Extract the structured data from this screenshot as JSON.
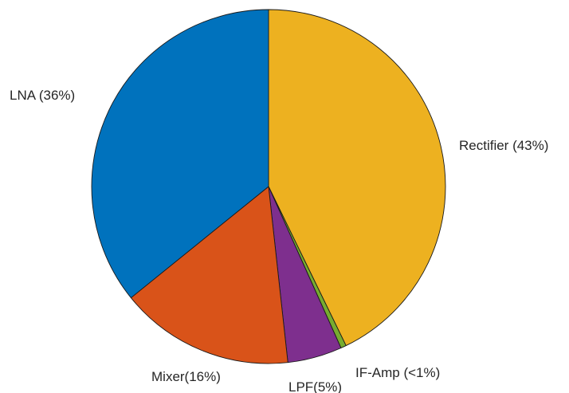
{
  "chart_data": {
    "type": "pie",
    "title": "",
    "slices": [
      {
        "label": "Rectifier (43%)",
        "value": 43,
        "color": "#EDB120"
      },
      {
        "label": "IF-Amp (<1%)",
        "value": 0.5,
        "color": "#77AC30"
      },
      {
        "label": "LPF(5%)",
        "value": 5,
        "color": "#7E2F8E"
      },
      {
        "label": "Mixer(16%)",
        "value": 16,
        "color": "#D95319"
      },
      {
        "label": "LNA (36%)",
        "value": 36,
        "color": "#0072BD"
      }
    ],
    "start": "top",
    "direction": "clockwise"
  }
}
